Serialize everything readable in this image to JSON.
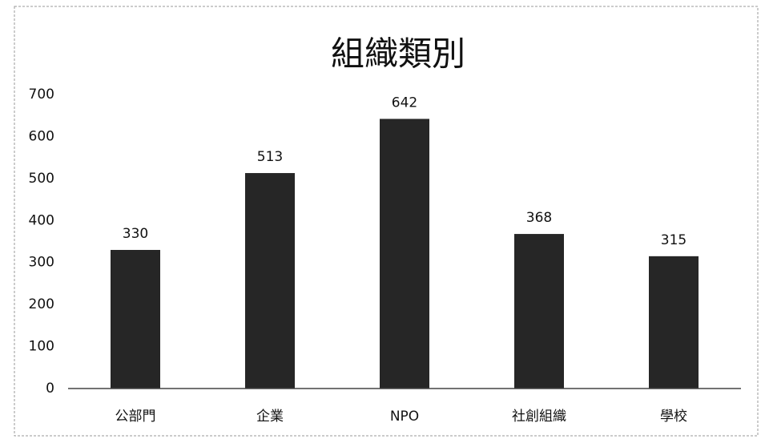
{
  "chart_data": {
    "type": "bar",
    "title": "組織類別",
    "categories": [
      "公部門",
      "企業",
      "NPO",
      "社創組織",
      "學校"
    ],
    "values": [
      330,
      513,
      642,
      368,
      315
    ],
    "color": "#262626",
    "ylim": [
      0,
      700
    ],
    "yticks": [
      0,
      100,
      200,
      300,
      400,
      500,
      600,
      700
    ],
    "grid": false
  }
}
